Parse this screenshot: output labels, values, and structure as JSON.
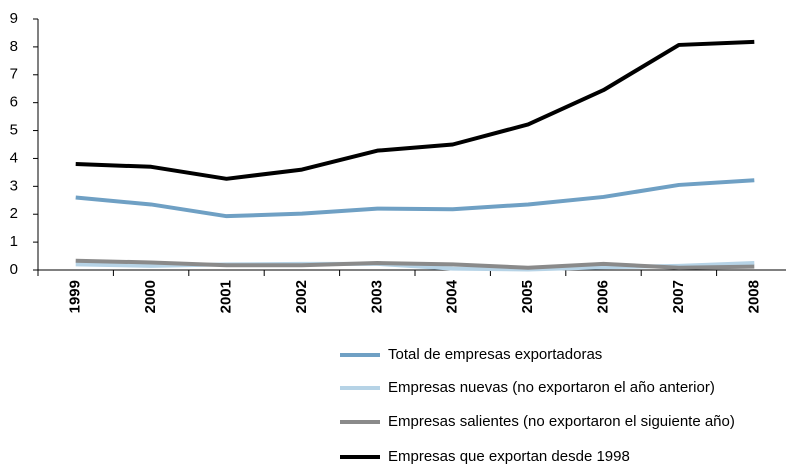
{
  "chart_data": {
    "type": "line",
    "categories": [
      "1999",
      "2000",
      "2001",
      "2002",
      "2003",
      "2004",
      "2005",
      "2006",
      "2007",
      "2008"
    ],
    "series": [
      {
        "name": "Total de empresas exportadoras",
        "color": "#6fa0c4",
        "values": [
          2.6,
          2.35,
          1.93,
          2.02,
          2.2,
          2.18,
          2.35,
          2.62,
          3.05,
          3.22
        ]
      },
      {
        "name": "Empresas nuevas (no exportaron el año anterior)",
        "color": "#b6d3e6",
        "values": [
          0.2,
          0.15,
          0.2,
          0.22,
          0.22,
          0.05,
          0.02,
          0.1,
          0.15,
          0.25
        ]
      },
      {
        "name": "Empresas salientes (no exportaron el siguiente año)",
        "color": "#8a8a8a",
        "values": [
          0.33,
          0.27,
          0.17,
          0.17,
          0.25,
          0.2,
          0.08,
          0.22,
          0.08,
          0.12
        ]
      },
      {
        "name": "Empresas que exportan desde 1998",
        "color": "#000000",
        "values": [
          3.8,
          3.7,
          3.27,
          3.6,
          4.28,
          4.5,
          5.22,
          6.45,
          8.07,
          8.18
        ]
      }
    ],
    "ylim": [
      0,
      9
    ],
    "yticks": [
      0,
      1,
      2,
      3,
      4,
      5,
      6,
      7,
      8,
      9
    ],
    "grid": false
  }
}
